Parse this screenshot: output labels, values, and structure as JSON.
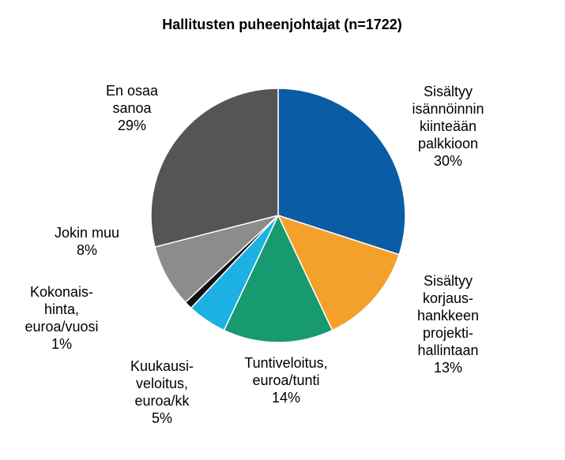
{
  "chart_data": {
    "type": "pie",
    "title": "Hallitusten puheenjohtajat (n=1722)",
    "categories": [
      [
        "Sisältyy",
        "isännöinnin",
        "kiinteään",
        "palkkioon"
      ],
      [
        "Sisältyy",
        "korjaus-",
        "hankkeen",
        "projekti-",
        "hallintaan"
      ],
      [
        "Tuntiveloitus,",
        "euroa/tunti"
      ],
      [
        "Kuukausi-",
        "veloitus,",
        "euroa/kk"
      ],
      [
        "Kokonais-",
        "hinta,",
        "euroa/vuosi"
      ],
      [
        "Jokin muu"
      ],
      [
        "En osaa",
        "sanoa"
      ]
    ],
    "values": [
      30,
      13,
      14,
      5,
      1,
      8,
      29
    ],
    "value_labels": [
      "30%",
      "13%",
      "14%",
      "5%",
      "1%",
      "8%",
      "29%"
    ],
    "colors": [
      "#0a5ca4",
      "#f4a12b",
      "#179a6f",
      "#1cb1e2",
      "#111111",
      "#8c8c8c",
      "#555555"
    ]
  }
}
